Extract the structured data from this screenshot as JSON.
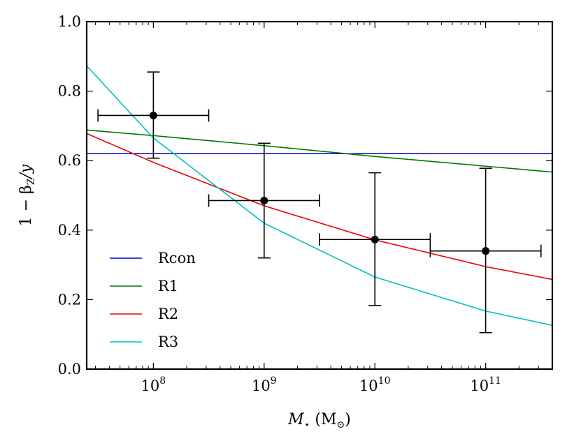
{
  "chart_data": {
    "type": "line",
    "title": "",
    "xlabel": {
      "main": "M",
      "sub": "⋆",
      "unit_open": " (M",
      "unit_sub": "⊙",
      "unit_close": ")"
    },
    "ylabel": {
      "pre": "1 − β",
      "sub": "Z",
      "post": "/y"
    },
    "xscale": "log",
    "xlim": [
      25000000.0,
      400000000000.0
    ],
    "ylim": [
      0.0,
      1.0
    ],
    "xticks": [
      {
        "value": 100000000.0,
        "base": "10",
        "exp": "8"
      },
      {
        "value": 1000000000.0,
        "base": "10",
        "exp": "9"
      },
      {
        "value": 10000000000.0,
        "base": "10",
        "exp": "10"
      },
      {
        "value": 100000000000.0,
        "base": "10",
        "exp": "11"
      }
    ],
    "yticks": [
      {
        "value": 0.0,
        "label": "0.0"
      },
      {
        "value": 0.2,
        "label": "0.2"
      },
      {
        "value": 0.4,
        "label": "0.4"
      },
      {
        "value": 0.6,
        "label": "0.6"
      },
      {
        "value": 0.8,
        "label": "0.8"
      },
      {
        "value": 1.0,
        "label": "1.0"
      }
    ],
    "legend_position": "lower-left",
    "series": [
      {
        "name": "Rcon",
        "color": "#0000cc",
        "x": [
          25000000.0,
          400000000000.0
        ],
        "y": [
          0.62,
          0.62
        ]
      },
      {
        "name": "R1",
        "color": "#007700",
        "x": [
          25000000.0,
          100000000.0,
          1000000000.0,
          10000000000.0,
          100000000000.0,
          400000000000.0
        ],
        "y": [
          0.688,
          0.672,
          0.643,
          0.612,
          0.584,
          0.567
        ]
      },
      {
        "name": "R2",
        "color": "#ee0000",
        "x": [
          25000000.0,
          100000000.0,
          1000000000.0,
          10000000000.0,
          100000000000.0,
          400000000000.0
        ],
        "y": [
          0.678,
          0.595,
          0.47,
          0.372,
          0.295,
          0.258
        ]
      },
      {
        "name": "R3",
        "color": "#00c0c0",
        "x": [
          25000000.0,
          100000000.0,
          1000000000.0,
          10000000000.0,
          100000000000.0,
          400000000000.0
        ],
        "y": [
          0.873,
          0.665,
          0.42,
          0.265,
          0.167,
          0.126
        ]
      }
    ],
    "data_points": [
      {
        "x": 100000000.0,
        "y": 0.73,
        "xerr": [
          31600000.0,
          316000000.0
        ],
        "yerr": [
          0.607,
          0.855
        ]
      },
      {
        "x": 1000000000.0,
        "y": 0.485,
        "xerr": [
          316000000.0,
          3160000000.0
        ],
        "yerr": [
          0.32,
          0.65
        ]
      },
      {
        "x": 10000000000.0,
        "y": 0.373,
        "xerr": [
          3160000000.0,
          31600000000.0
        ],
        "yerr": [
          0.183,
          0.565
        ]
      },
      {
        "x": 100000000000.0,
        "y": 0.34,
        "xerr": [
          31600000000.0,
          316000000000.0
        ],
        "yerr": [
          0.105,
          0.578
        ]
      }
    ]
  }
}
